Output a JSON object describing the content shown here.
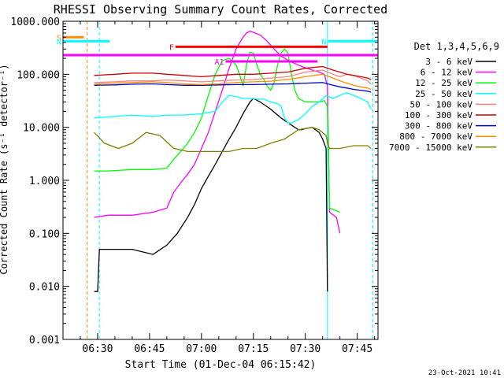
{
  "chart_data": {
    "type": "line",
    "title": "RHESSI Observing Summary Count Rates, Corrected",
    "xlabel": "Start Time (01-Dec-04 06:15:42)",
    "ylabel": "Corrected Count Rate (s⁻¹ detector⁻¹)",
    "y_scale": "log",
    "ylim": [
      0.001,
      1000
    ],
    "xlim_minutes_after_06_00": [
      20,
      111
    ],
    "x_ticks": [
      {
        "t": 30,
        "label": "06:30"
      },
      {
        "t": 45,
        "label": "06:45"
      },
      {
        "t": 60,
        "label": "07:00"
      },
      {
        "t": 75,
        "label": "07:15"
      },
      {
        "t": 90,
        "label": "07:30"
      },
      {
        "t": 105,
        "label": "07:45"
      }
    ],
    "y_ticks": [
      {
        "v": 0.001,
        "label": "0.001"
      },
      {
        "v": 0.01,
        "label": "0.010"
      },
      {
        "v": 0.1,
        "label": "0.100"
      },
      {
        "v": 1,
        "label": "1.000"
      },
      {
        "v": 10,
        "label": "10.000"
      },
      {
        "v": 100,
        "label": "100.000"
      },
      {
        "v": 1000,
        "label": "1000.000"
      }
    ],
    "legend_title": "Det 1,3,4,5,6,9",
    "legend_position": "right",
    "timestamp": "23-Oct-2021 10:41",
    "series": [
      {
        "name": "3 - 6 keV",
        "color": "#000000",
        "t": [
          29,
          30,
          30.5,
          33,
          40,
          46,
          50,
          53,
          56,
          58,
          60,
          62,
          64,
          66,
          68,
          70,
          72,
          74,
          75,
          77,
          80,
          83,
          86,
          88,
          89,
          90,
          92,
          94,
          95,
          96,
          96.4
        ],
        "y": [
          0.008,
          0.008,
          0.05,
          0.05,
          0.05,
          0.04,
          0.06,
          0.1,
          0.2,
          0.35,
          0.7,
          1.2,
          2.0,
          3.5,
          6,
          10,
          18,
          30,
          35,
          30,
          22,
          15,
          11,
          9,
          9,
          9.5,
          10,
          8,
          6,
          4,
          0.008
        ]
      },
      {
        "name": "6 - 12 keV",
        "color": "#ff00ff",
        "t": [
          29,
          33,
          40,
          46,
          50,
          52,
          54,
          56,
          58,
          60,
          62,
          64,
          66,
          68,
          70,
          72,
          73,
          74,
          75,
          77,
          79,
          81,
          83,
          86,
          89,
          92,
          94,
          95.5,
          96.4,
          97,
          99,
          100
        ],
        "y": [
          0.2,
          0.22,
          0.22,
          0.25,
          0.3,
          0.6,
          0.9,
          1.3,
          2,
          4,
          8,
          20,
          50,
          130,
          300,
          500,
          600,
          650,
          620,
          550,
          420,
          300,
          220,
          170,
          140,
          120,
          110,
          100,
          60,
          0.25,
          0.2,
          0.1
        ]
      },
      {
        "name": "12 - 25 keV",
        "color": "#00ff00",
        "t": [
          29,
          33,
          40,
          46,
          50,
          52,
          54,
          56,
          58,
          60,
          62,
          64,
          66,
          68,
          70,
          71,
          72,
          73,
          74,
          75,
          76,
          77,
          78,
          79,
          80,
          81,
          82,
          83,
          84,
          85,
          86,
          87,
          88,
          90,
          92,
          94,
          95.5,
          96.4,
          97,
          100
        ],
        "y": [
          1.5,
          1.5,
          1.6,
          1.6,
          1.7,
          2.5,
          3.5,
          5,
          8,
          15,
          40,
          100,
          180,
          200,
          150,
          100,
          60,
          150,
          260,
          250,
          150,
          100,
          80,
          60,
          50,
          70,
          150,
          250,
          300,
          250,
          100,
          50,
          35,
          30,
          30,
          30,
          32,
          25,
          0.3,
          0.25
        ]
      },
      {
        "name": "25 - 50 keV",
        "color": "#00ffff",
        "t": [
          29,
          35,
          40,
          46,
          50,
          55,
          60,
          64,
          66,
          68,
          70,
          72,
          74,
          76,
          78,
          80,
          82,
          83,
          84,
          85,
          86,
          88,
          90,
          92,
          94,
          96,
          98,
          100,
          102,
          104,
          106,
          108,
          109
        ],
        "y": [
          15,
          16,
          17,
          16,
          17,
          17,
          18,
          20,
          30,
          40,
          38,
          35,
          35,
          34,
          34,
          30,
          28,
          25,
          15,
          12,
          12,
          14,
          18,
          25,
          30,
          40,
          35,
          40,
          45,
          40,
          35,
          30,
          22
        ]
      },
      {
        "name": "50 - 100 keV",
        "color": "#ff8080",
        "t": [
          29,
          35,
          40,
          46,
          50,
          55,
          60,
          65,
          70,
          75,
          80,
          85,
          90,
          95,
          98,
          100,
          102,
          104,
          106,
          108,
          109
        ],
        "y": [
          70,
          72,
          75,
          75,
          78,
          75,
          72,
          75,
          78,
          80,
          85,
          90,
          110,
          120,
          100,
          90,
          100,
          95,
          85,
          75,
          65
        ]
      },
      {
        "name": "100 - 300 keV",
        "color": "#cc0000",
        "t": [
          29,
          35,
          40,
          46,
          50,
          55,
          60,
          65,
          70,
          75,
          80,
          85,
          90,
          95,
          98,
          100,
          102,
          104,
          106,
          108,
          109
        ],
        "y": [
          95,
          100,
          105,
          105,
          100,
          95,
          90,
          95,
          100,
          100,
          105,
          110,
          130,
          140,
          120,
          110,
          100,
          95,
          90,
          85,
          80
        ]
      },
      {
        "name": "300 - 800 keV",
        "color": "#0000cc",
        "t": [
          29,
          35,
          40,
          46,
          50,
          55,
          60,
          65,
          70,
          75,
          80,
          85,
          90,
          95,
          98,
          100,
          102,
          104,
          106,
          108,
          109
        ],
        "y": [
          62,
          63,
          65,
          66,
          64,
          62,
          62,
          63,
          64,
          64,
          65,
          66,
          68,
          70,
          62,
          58,
          55,
          52,
          50,
          48,
          46
        ]
      },
      {
        "name": "800 - 7000 keV",
        "color": "#ff8c00",
        "t": [
          29,
          35,
          40,
          46,
          50,
          55,
          60,
          65,
          70,
          75,
          80,
          85,
          90,
          95,
          98,
          100,
          102,
          104,
          106,
          108,
          109
        ],
        "y": [
          65,
          68,
          70,
          72,
          70,
          66,
          64,
          66,
          70,
          72,
          74,
          80,
          90,
          100,
          85,
          75,
          68,
          62,
          58,
          55,
          52
        ]
      },
      {
        "name": "7000 - 15000 keV",
        "color": "#808000",
        "t": [
          29,
          32,
          36,
          40,
          44,
          48,
          52,
          56,
          60,
          64,
          68,
          72,
          76,
          80,
          84,
          88,
          92,
          94,
          96,
          96.4,
          97,
          100,
          104,
          108,
          109
        ],
        "y": [
          8,
          5,
          4,
          5,
          8,
          7,
          4,
          3.5,
          3.5,
          3.5,
          3.5,
          4,
          4,
          5,
          6,
          9,
          10,
          9,
          7,
          5,
          4,
          4,
          4.5,
          4.5,
          4
        ]
      }
    ],
    "annotations": [
      {
        "label": "S",
        "color": "#ff8c00",
        "kind": "bar",
        "t0": 20,
        "t1": 26,
        "y": 500
      },
      {
        "label": "N",
        "color": "#00ffff",
        "kind": "bar",
        "t0": 20,
        "t1": 33.5,
        "y": 420
      },
      {
        "label": "N",
        "color": "#00ffff",
        "kind": "bar",
        "t0": 96.5,
        "t1": 111,
        "y": 420
      },
      {
        "label": "F",
        "color": "#ff0000",
        "kind": "bar",
        "t0": 52.5,
        "t1": 96.4,
        "y": 330
      },
      {
        "label": "",
        "color": "#ff00ff",
        "kind": "bar",
        "t0": 20,
        "t1": 111,
        "y": 230
      },
      {
        "label": "A1",
        "color": "#ff00ff",
        "kind": "bar",
        "t0": 67,
        "t1": 93.5,
        "y": 175
      }
    ],
    "vertical_markers": [
      {
        "t": 27,
        "color": "#ff8c00",
        "style": "dashed"
      },
      {
        "t": 30.5,
        "color": "#00ffff",
        "style": "dashed"
      },
      {
        "t": 96.4,
        "color": "#00ffff",
        "style": "solid"
      },
      {
        "t": 109.5,
        "color": "#00ffff",
        "style": "dashed"
      }
    ]
  }
}
